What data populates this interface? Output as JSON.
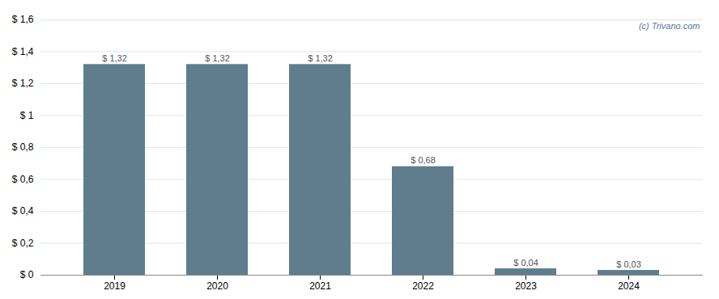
{
  "chart_data": {
    "type": "bar",
    "categories": [
      "2019",
      "2020",
      "2021",
      "2022",
      "2023",
      "2024"
    ],
    "values": [
      1.32,
      1.32,
      1.32,
      0.68,
      0.04,
      0.03
    ],
    "value_labels": [
      "$ 1,32",
      "$ 1,32",
      "$ 1,32",
      "$ 0,68",
      "$ 0,04",
      "$ 0,03"
    ],
    "data_labels": true,
    "color": "#5f7d8c",
    "ylim": [
      0,
      1.6
    ],
    "yticks": [
      {
        "value": 0,
        "label": "$ 0"
      },
      {
        "value": 0.2,
        "label": "$ 0,2"
      },
      {
        "value": 0.4,
        "label": "$ 0,4"
      },
      {
        "value": 0.6,
        "label": "$ 0,6"
      },
      {
        "value": 0.8,
        "label": "$ 0,8"
      },
      {
        "value": 1.0,
        "label": "$ 1"
      },
      {
        "value": 1.2,
        "label": "$ 1,2"
      },
      {
        "value": 1.4,
        "label": "$ 1,4"
      },
      {
        "value": 1.6,
        "label": "$ 1,6"
      }
    ],
    "grid": true,
    "annotations": [
      "(c) Trivano.com"
    ]
  }
}
